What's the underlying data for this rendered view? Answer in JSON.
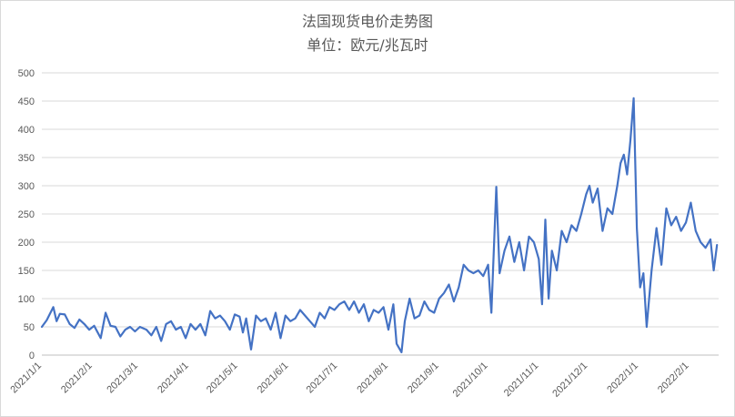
{
  "chart_data": {
    "type": "line",
    "title": "法国现货电价走势图",
    "subtitle": "单位：欧元/兆瓦时",
    "xlabel": "",
    "ylabel": "",
    "ylim": [
      0,
      500
    ],
    "yticks": [
      0,
      50,
      100,
      150,
      200,
      250,
      300,
      350,
      400,
      450,
      500
    ],
    "xtick_labels": [
      "2021/1/1",
      "2021/2/1",
      "2021/3/1",
      "2021/4/1",
      "2021/5/1",
      "2021/6/1",
      "2021/7/1",
      "2021/8/1",
      "2021/9/1",
      "2021/10/1",
      "2021/11/1",
      "2021/12/1",
      "2022/1/1",
      "2022/2/1"
    ],
    "grid": "horizontal",
    "legend": "none",
    "color": "#4472c4",
    "series": [
      {
        "x": [
          "2021/1/1",
          "2021/1/4",
          "2021/1/8",
          "2021/1/10",
          "2021/1/12",
          "2021/1/15",
          "2021/1/18",
          "2021/1/21",
          "2021/1/24",
          "2021/1/27",
          "2021/1/30",
          "2021/2/2",
          "2021/2/6",
          "2021/2/9",
          "2021/2/12",
          "2021/2/15",
          "2021/2/18",
          "2021/2/21",
          "2021/2/24",
          "2021/2/27",
          "2021/3/2",
          "2021/3/6",
          "2021/3/9",
          "2021/3/12",
          "2021/3/15",
          "2021/3/18",
          "2021/3/21",
          "2021/3/24",
          "2021/3/27",
          "2021/3/30",
          "2021/4/2",
          "2021/4/5",
          "2021/4/8",
          "2021/4/11",
          "2021/4/14",
          "2021/4/17",
          "2021/4/20",
          "2021/4/23",
          "2021/4/26",
          "2021/4/29",
          "2021/5/2",
          "2021/5/4",
          "2021/5/6",
          "2021/5/9",
          "2021/5/12",
          "2021/5/15",
          "2021/5/18",
          "2021/5/21",
          "2021/5/24",
          "2021/5/27",
          "2021/5/30",
          "2021/6/2",
          "2021/6/5",
          "2021/6/8",
          "2021/6/11",
          "2021/6/14",
          "2021/6/17",
          "2021/6/20",
          "2021/6/23",
          "2021/6/26",
          "2021/6/29",
          "2021/7/2",
          "2021/7/5",
          "2021/7/8",
          "2021/7/11",
          "2021/7/14",
          "2021/7/17",
          "2021/7/20",
          "2021/7/23",
          "2021/7/26",
          "2021/7/29",
          "2021/8/1",
          "2021/8/4",
          "2021/8/6",
          "2021/8/9",
          "2021/8/11",
          "2021/8/14",
          "2021/8/17",
          "2021/8/20",
          "2021/8/23",
          "2021/8/26",
          "2021/8/29",
          "2021/9/1",
          "2021/9/4",
          "2021/9/7",
          "2021/9/10",
          "2021/9/13",
          "2021/9/16",
          "2021/9/19",
          "2021/9/22",
          "2021/9/25",
          "2021/9/28",
          "2021/10/1",
          "2021/10/3",
          "2021/10/4",
          "2021/10/6",
          "2021/10/8",
          "2021/10/11",
          "2021/10/14",
          "2021/10/17",
          "2021/10/20",
          "2021/10/23",
          "2021/10/26",
          "2021/10/29",
          "2021/11/1",
          "2021/11/3",
          "2021/11/5",
          "2021/11/7",
          "2021/11/9",
          "2021/11/12",
          "2021/11/15",
          "2021/11/18",
          "2021/11/21",
          "2021/11/24",
          "2021/11/27",
          "2021/11/30",
          "2021/12/2",
          "2021/12/4",
          "2021/12/7",
          "2021/12/10",
          "2021/12/13",
          "2021/12/16",
          "2021/12/19",
          "2021/12/21",
          "2021/12/23",
          "2021/12/25",
          "2021/12/27",
          "2021/12/29",
          "2021/12/31",
          "2022/1/2",
          "2022/1/4",
          "2022/1/6",
          "2022/1/9",
          "2022/1/12",
          "2022/1/15",
          "2022/1/18",
          "2022/1/21",
          "2022/1/24",
          "2022/1/27",
          "2022/1/30",
          "2022/2/2",
          "2022/2/5",
          "2022/2/8",
          "2022/2/11",
          "2022/2/14",
          "2022/2/16",
          "2022/2/18"
        ],
        "values": [
          50,
          62,
          85,
          60,
          73,
          72,
          55,
          48,
          63,
          55,
          45,
          52,
          30,
          75,
          52,
          50,
          33,
          45,
          50,
          42,
          50,
          45,
          35,
          50,
          25,
          55,
          60,
          45,
          50,
          30,
          55,
          45,
          55,
          35,
          78,
          65,
          70,
          60,
          45,
          72,
          68,
          40,
          65,
          10,
          70,
          60,
          65,
          45,
          75,
          30,
          70,
          60,
          65,
          80,
          70,
          60,
          50,
          75,
          65,
          85,
          80,
          90,
          95,
          80,
          95,
          75,
          90,
          60,
          80,
          75,
          85,
          45,
          90,
          20,
          5,
          60,
          100,
          65,
          70,
          95,
          80,
          75,
          100,
          110,
          125,
          95,
          120,
          160,
          150,
          145,
          150,
          140,
          160,
          75,
          150,
          298,
          145,
          185,
          210,
          165,
          200,
          150,
          210,
          200,
          170,
          90,
          240,
          100,
          185,
          150,
          220,
          200,
          230,
          220,
          250,
          285,
          300,
          270,
          295,
          220,
          260,
          250,
          300,
          340,
          355,
          320,
          380,
          455,
          225,
          120,
          145,
          50,
          150,
          225,
          160,
          260,
          230,
          245,
          220,
          235,
          270,
          220,
          200,
          190,
          205,
          150,
          195
        ]
      }
    ]
  }
}
